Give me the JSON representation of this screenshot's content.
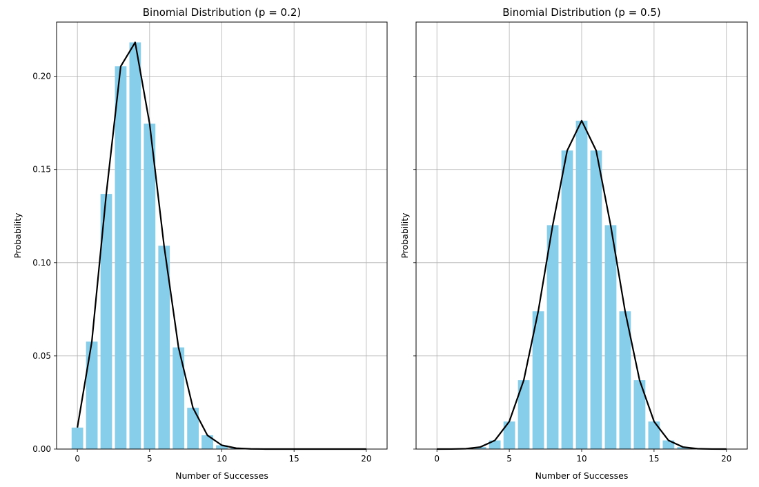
{
  "chart_data": [
    {
      "type": "bar",
      "title": "Binomial Distribution (p = 0.2)",
      "xlabel": "Number of Successes",
      "ylabel": "Probability",
      "n": 20,
      "p": 0.2,
      "x": [
        0,
        1,
        2,
        3,
        4,
        5,
        6,
        7,
        8,
        9,
        10,
        11,
        12,
        13,
        14,
        15,
        16,
        17,
        18,
        19,
        20
      ],
      "values": [
        0.01153,
        0.05765,
        0.13691,
        0.20536,
        0.2182,
        0.17456,
        0.1091,
        0.05455,
        0.02216,
        0.00739,
        0.00203,
        0.00046,
        8.7e-05,
        1.34e-05,
        1.7e-06,
        2e-07,
        0,
        0,
        0,
        0,
        0
      ],
      "series": [
        {
          "name": "bars",
          "color": "#87ceeb"
        },
        {
          "name": "line",
          "color": "#000000"
        }
      ],
      "xlim": [
        -1.44,
        21.44
      ],
      "ylim": [
        0,
        0.2291
      ],
      "xticks": [
        "0",
        "5",
        "10",
        "15",
        "20"
      ],
      "yticks": [
        "0.00",
        "0.05",
        "0.10",
        "0.15",
        "0.20"
      ],
      "grid": true
    },
    {
      "type": "bar",
      "title": "Binomial Distribution (p = 0.5)",
      "xlabel": "Number of Successes",
      "ylabel": "Probability",
      "n": 20,
      "p": 0.5,
      "x": [
        0,
        1,
        2,
        3,
        4,
        5,
        6,
        7,
        8,
        9,
        10,
        11,
        12,
        13,
        14,
        15,
        16,
        17,
        18,
        19,
        20
      ],
      "values": [
        9.5e-07,
        1.91e-05,
        0.000181,
        0.001087,
        0.004621,
        0.014786,
        0.036964,
        0.073929,
        0.120134,
        0.160179,
        0.176197,
        0.160179,
        0.120134,
        0.073929,
        0.036964,
        0.014786,
        0.004621,
        0.001087,
        0.000181,
        1.91e-05,
        9.5e-07
      ],
      "series": [
        {
          "name": "bars",
          "color": "#87ceeb"
        },
        {
          "name": "line",
          "color": "#000000"
        }
      ],
      "xlim": [
        -1.44,
        21.44
      ],
      "ylim": [
        0,
        0.2291
      ],
      "xticks": [
        "0",
        "5",
        "10",
        "15",
        "20"
      ],
      "yticks": [
        "0.00",
        "0.05",
        "0.10",
        "0.15",
        "0.20"
      ],
      "grid": true
    }
  ]
}
